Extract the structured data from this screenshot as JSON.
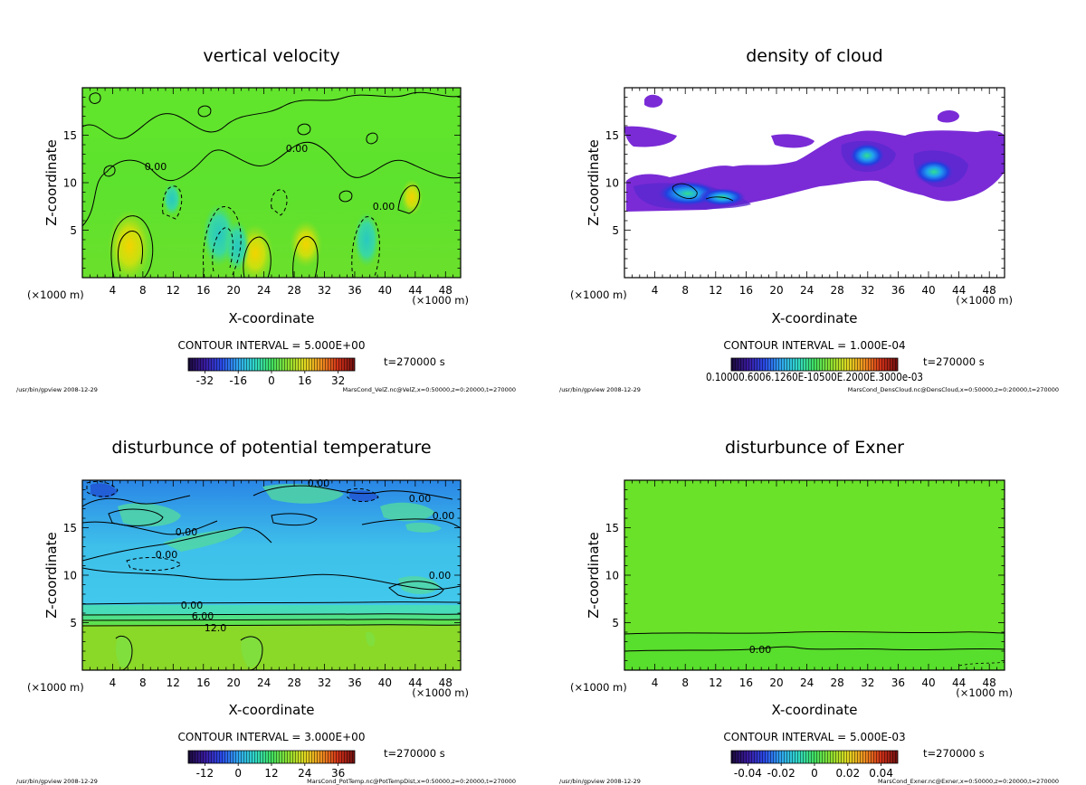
{
  "colors": {
    "background": "#ffffff",
    "frame": "#000000",
    "plot_bg_green": "#55e22a",
    "cloud_purple": "#7a2bd6",
    "cloud_blue": "#2255ee",
    "temp_cyan": "#3fc8ec",
    "temp_blue": "#2a7ae8"
  },
  "chart_data": [
    {
      "type": "heatmap",
      "title": "vertical velocity",
      "xlabel": "X-coordinate",
      "ylabel": "Z-coordinate",
      "x_ticks": [
        "4",
        "8",
        "12",
        "16",
        "20",
        "24",
        "28",
        "32",
        "36",
        "40",
        "44",
        "48"
      ],
      "y_ticks": [
        "5",
        "10",
        "15"
      ],
      "xlim": [
        0,
        50
      ],
      "ylim": [
        0,
        20
      ],
      "x_unit_left": "(×1000 m)",
      "x_unit_right": "(×1000 m)",
      "contour_interval": "CONTOUR INTERVAL = 5.000E+00",
      "colorbar_ticks": [
        "-32",
        "-16",
        "0",
        "16",
        "32"
      ],
      "colorbar_range": [
        -40,
        40
      ],
      "time": "t=270000 s",
      "contour_labels": [
        "0.00",
        "0.00",
        "0.00"
      ],
      "footer_left": "/usr/bin/gpview  2008-12-29",
      "footer_right": "MarsCond_VelZ.nc@VelZ,x=0:50000,z=0:20000,t=270000"
    },
    {
      "type": "heatmap",
      "title": "density of cloud",
      "xlabel": "X-coordinate",
      "ylabel": "Z-coordinate",
      "x_ticks": [
        "4",
        "8",
        "12",
        "16",
        "20",
        "24",
        "28",
        "32",
        "36",
        "40",
        "44",
        "48"
      ],
      "y_ticks": [
        "5",
        "10",
        "15"
      ],
      "xlim": [
        0,
        50
      ],
      "ylim": [
        0,
        20
      ],
      "x_unit_left": "(×1000 m)",
      "x_unit_right": "(×1000 m)",
      "contour_interval": "CONTOUR INTERVAL = 1.000E-04",
      "colorbar_label_text": "0.10000.6006.1260E-10500E.2000E.3000e-03",
      "colorbar_range": [
        0,
        0.0011
      ],
      "time": "t=270000 s",
      "footer_left": "/usr/bin/gpview  2008-12-29",
      "footer_right": "MarsCond_DensCloud.nc@DensCloud,x=0:50000,z=0:20000,t=270000"
    },
    {
      "type": "heatmap",
      "title": "disturbunce of potential temperature",
      "xlabel": "X-coordinate",
      "ylabel": "Z-coordinate",
      "x_ticks": [
        "4",
        "8",
        "12",
        "16",
        "20",
        "24",
        "28",
        "32",
        "36",
        "40",
        "44",
        "48"
      ],
      "y_ticks": [
        "5",
        "10",
        "15"
      ],
      "xlim": [
        0,
        50
      ],
      "ylim": [
        0,
        20
      ],
      "x_unit_left": "(×1000 m)",
      "x_unit_right": "(×1000 m)",
      "contour_interval": "CONTOUR INTERVAL = 3.000E+00",
      "colorbar_ticks": [
        "-12",
        "0",
        "12",
        "24",
        "36"
      ],
      "colorbar_range": [
        -18,
        42
      ],
      "time": "t=270000 s",
      "contour_labels": [
        "0.00",
        "0.00",
        "0.00",
        "0.00",
        "0.00",
        "0.00",
        "0.00",
        "6.00",
        "12.0"
      ],
      "footer_left": "/usr/bin/gpview  2008-12-29",
      "footer_right": "MarsCond_PotTemp.nc@PotTempDist,x=0:50000,z=0:20000,t=270000"
    },
    {
      "type": "heatmap",
      "title": "disturbunce of Exner",
      "xlabel": "X-coordinate",
      "ylabel": "Z-coordinate",
      "x_ticks": [
        "4",
        "8",
        "12",
        "16",
        "20",
        "24",
        "28",
        "32",
        "36",
        "40",
        "44",
        "48"
      ],
      "y_ticks": [
        "5",
        "10",
        "15"
      ],
      "xlim": [
        0,
        50
      ],
      "ylim": [
        0,
        20
      ],
      "x_unit_left": "(×1000 m)",
      "x_unit_right": "(×1000 m)",
      "contour_interval": "CONTOUR INTERVAL = 5.000E-03",
      "colorbar_ticks": [
        "-0.04",
        "-0.02",
        "0",
        "0.02",
        "0.04"
      ],
      "colorbar_range": [
        -0.05,
        0.05
      ],
      "time": "t=270000 s",
      "contour_labels": [
        "0.00"
      ],
      "footer_left": "/usr/bin/gpview  2008-12-29",
      "footer_right": "MarsCond_Exner.nc@Exner,x=0:50000,z=0:20000,t=270000"
    }
  ]
}
